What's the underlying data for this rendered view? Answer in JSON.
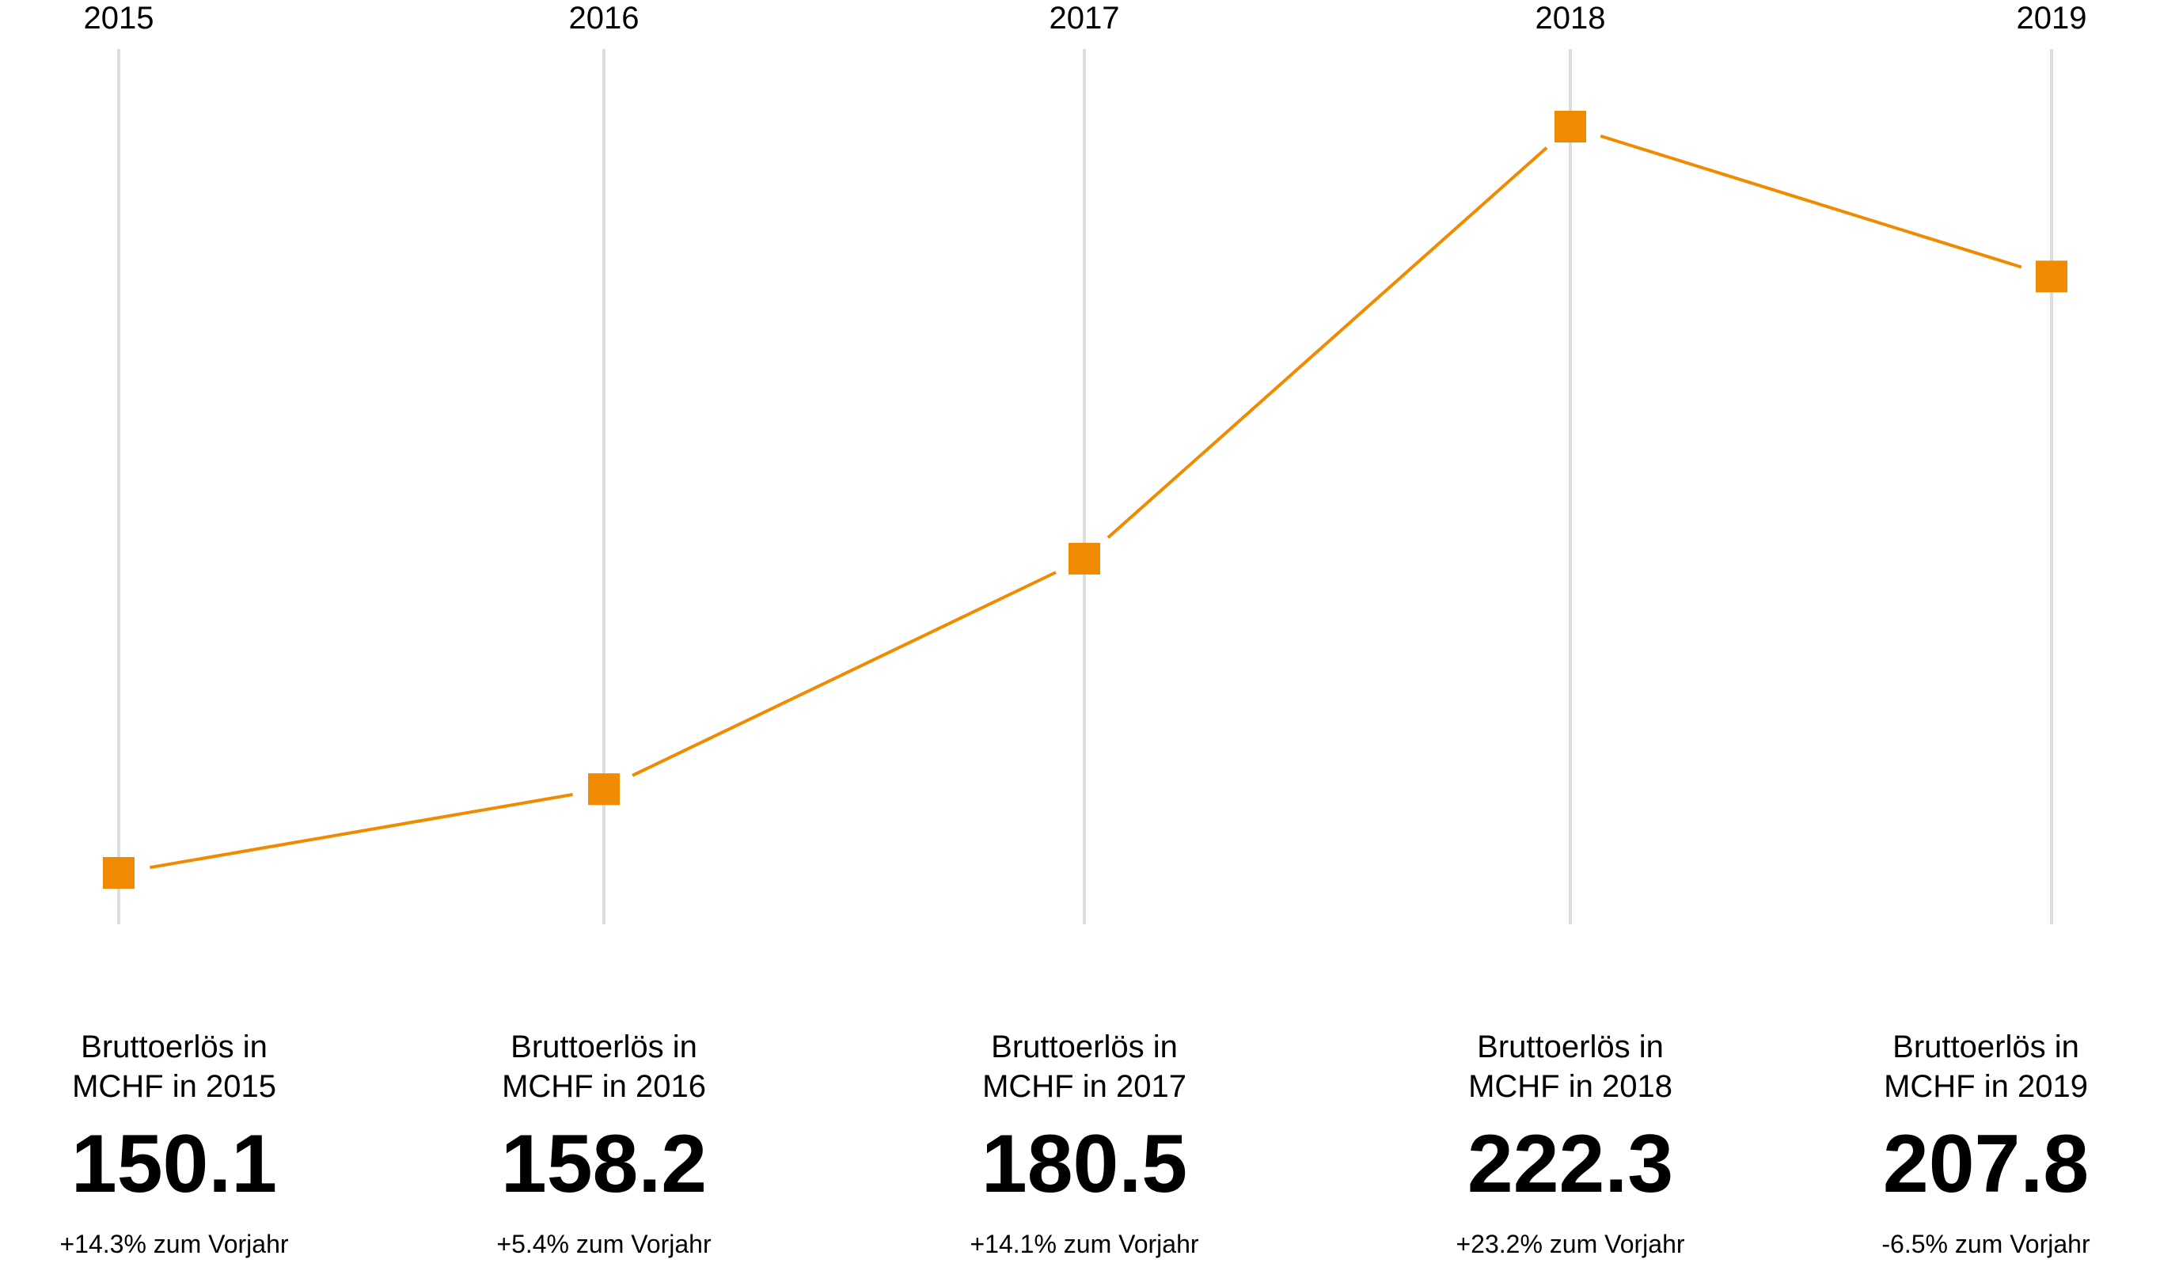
{
  "chart_data": {
    "type": "line",
    "x": [
      "2015",
      "2016",
      "2017",
      "2018",
      "2019"
    ],
    "series": [
      {
        "values": [
          150.1,
          158.2,
          180.5,
          222.3,
          207.8
        ]
      }
    ],
    "ylim": [
      150.1,
      222.3
    ],
    "grid": "vertical",
    "colors": {
      "line": "#F08A00",
      "marker": "#F08A00",
      "grid": "#DDDDDD"
    },
    "captions": [
      {
        "label": "Bruttoerlös in\nMCHF in 2015",
        "value": "150.1",
        "change": "+14.3% zum Vorjahr"
      },
      {
        "label": "Bruttoerlös in\nMCHF in 2016",
        "value": "158.2",
        "change": "+5.4% zum Vorjahr"
      },
      {
        "label": "Bruttoerlös in\nMCHF in 2017",
        "value": "180.5",
        "change": "+14.1% zum Vorjahr"
      },
      {
        "label": "Bruttoerlös in\nMCHF in 2018",
        "value": "222.3",
        "change": "+23.2% zum Vorjahr"
      },
      {
        "label": "Bruttoerlös in\nMCHF in 2019",
        "value": "207.8",
        "change": "-6.5% zum Vorjahr"
      }
    ]
  }
}
